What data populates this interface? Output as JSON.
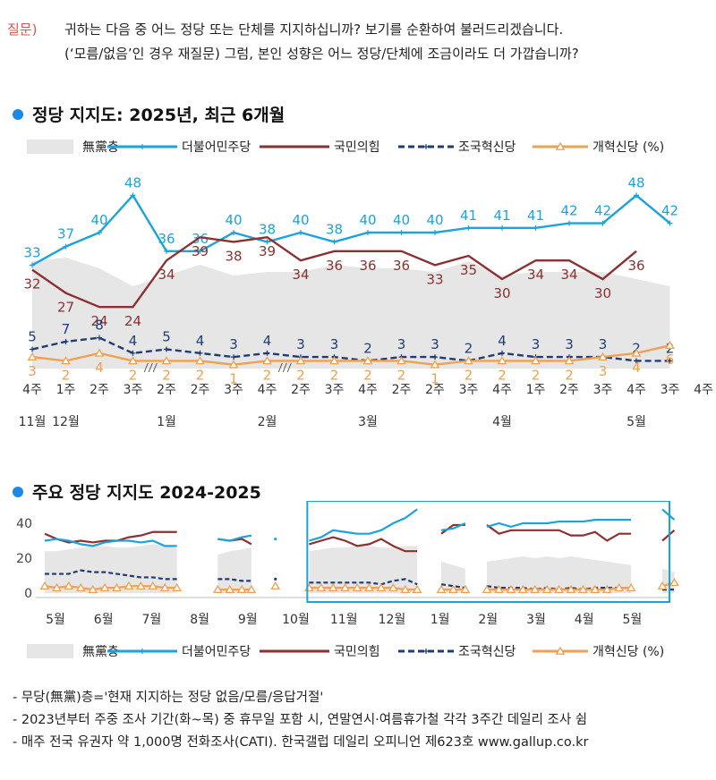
{
  "question": {
    "label": "질문)",
    "line1": "귀하는 다음 중 어느 정당 또는 단체를 지지하십니까? 보기를 순환하여 불러드리겠습니다.",
    "line2": "(‘모름/없음’인 경우 재질문) 그럼, 본인 성향은 어느 정당/단체에 조금이라도 더 가깝습니까?"
  },
  "section1_title": "정당 지지도: 2025년, 최근 6개월",
  "section2_title": "주요 정당 지지도 2024-2025",
  "legend": {
    "noparty": "無黨층",
    "dem": "더불어민주당",
    "ppp": "국민의힘",
    "rebuild": "조국혁신당",
    "reform": "개혁신당 (%)"
  },
  "colors": {
    "dem": "#1aa3dc",
    "ppp": "#8b3131",
    "rebuild": "#1f3d73",
    "reform": "#f0a050",
    "noparty": "#e6e6e6",
    "highlight": "#1aa3dc"
  },
  "chart_data": [
    {
      "type": "line",
      "title": "정당 지지도: 2025년, 최근 6개월",
      "x": [
        "4주",
        "1주",
        "2주",
        "3주",
        "2주",
        "2주",
        "3주",
        "4주",
        "2주",
        "3주",
        "4주",
        "2주",
        "2주",
        "3주",
        "4주",
        "1주",
        "2주",
        "3주",
        "4주",
        "3주",
        "4주"
      ],
      "month_labels": [
        {
          "label": "11월",
          "at": 0
        },
        {
          "label": "12월",
          "at": 1
        },
        {
          "label": "1월",
          "at": 4
        },
        {
          "label": "2월",
          "at": 7
        },
        {
          "label": "3월",
          "at": 10
        },
        {
          "label": "4월",
          "at": 14
        },
        {
          "label": "5월",
          "at": 18
        }
      ],
      "break_marks_after": [
        3,
        7
      ],
      "series": [
        {
          "name": "더불어민주당",
          "key": "dem",
          "values": [
            33,
            37,
            40,
            48,
            36,
            36,
            40,
            38,
            40,
            38,
            40,
            40,
            40,
            41,
            41,
            41,
            42,
            42,
            48,
            42,
            null
          ],
          "label_pos": "above"
        },
        {
          "name": "국민의힘",
          "key": "ppp",
          "values": [
            32,
            27,
            24,
            24,
            34,
            39,
            38,
            39,
            34,
            36,
            36,
            36,
            33,
            35,
            30,
            34,
            34,
            30,
            36,
            null,
            null
          ],
          "label_pos": "below"
        },
        {
          "name": "조국혁신당",
          "key": "rebuild",
          "values": [
            5,
            7,
            8,
            4,
            5,
            4,
            3,
            4,
            3,
            3,
            2,
            3,
            3,
            2,
            4,
            3,
            3,
            3,
            2,
            2,
            null
          ],
          "label_pos": "above"
        },
        {
          "name": "개혁신당",
          "key": "reform",
          "values": [
            3,
            2,
            4,
            2,
            2,
            2,
            1,
            2,
            2,
            2,
            2,
            2,
            1,
            2,
            2,
            2,
            2,
            3,
            4,
            6,
            null
          ],
          "label_pos": "below"
        }
      ],
      "noparty": [
        30,
        31,
        28,
        23,
        26,
        29,
        26,
        27,
        27,
        29,
        28,
        28,
        27,
        30,
        26,
        27,
        27,
        27,
        25,
        23,
        null
      ],
      "ylim": [
        0,
        55
      ]
    },
    {
      "type": "line",
      "title": "주요 정당 지지도 2024-2025",
      "yticks": [
        0,
        20,
        40
      ],
      "ylim": [
        0,
        50
      ],
      "months": [
        "5월",
        "6월",
        "7월",
        "8월",
        "9월",
        "10월",
        "11월",
        "12월",
        "1월",
        "2월",
        "3월",
        "4월",
        "5월"
      ],
      "segments": [
        {
          "x": [
            0.0,
            0.25,
            0.5,
            0.75,
            1.0,
            1.25,
            1.5,
            1.75,
            2.0,
            2.25,
            2.5,
            2.75
          ],
          "dem": [
            30,
            31,
            30,
            28,
            27,
            29,
            30,
            30,
            29,
            30,
            27,
            27
          ],
          "ppp": [
            34,
            31,
            29,
            30,
            29,
            30,
            30,
            32,
            33,
            35,
            35,
            35
          ],
          "rebuild": [
            11,
            11,
            11,
            13,
            12,
            12,
            11,
            10,
            9,
            9,
            8,
            8
          ],
          "reform": [
            4,
            3,
            4,
            3,
            2,
            3,
            3,
            4,
            4,
            4,
            3,
            3
          ],
          "noparty": [
            24,
            24,
            25,
            26,
            27,
            27,
            26,
            26,
            27,
            28,
            27,
            26
          ]
        },
        {
          "x": [
            3.6,
            3.85,
            4.1,
            4.3
          ],
          "dem": [
            31,
            30,
            32,
            33
          ],
          "ppp": [
            31,
            30,
            31,
            28
          ],
          "rebuild": [
            8,
            8,
            7,
            7
          ],
          "reform": [
            2,
            2,
            2,
            2
          ],
          "noparty": [
            22,
            24,
            25,
            26
          ]
        },
        {
          "x": [
            4.8
          ],
          "dem": [
            31
          ],
          "rebuild": [
            8
          ],
          "reform": [
            4
          ]
        },
        {
          "x": [
            5.5,
            5.75,
            6.0,
            6.25,
            6.5,
            6.75,
            7.0,
            7.25,
            7.5,
            7.75
          ],
          "dem": [
            30,
            32,
            36,
            35,
            34,
            34,
            36,
            40,
            43,
            48
          ],
          "ppp": [
            28,
            30,
            32,
            30,
            27,
            28,
            31,
            27,
            24,
            24
          ],
          "rebuild": [
            6,
            6,
            6,
            6,
            6,
            6,
            5,
            7,
            8,
            5
          ],
          "reform": [
            3,
            3,
            3,
            3,
            3,
            3,
            3,
            3,
            2,
            2
          ],
          "noparty": [
            24,
            25,
            26,
            26,
            27,
            27,
            26,
            26,
            27,
            27
          ]
        },
        {
          "x": [
            8.25,
            8.5,
            8.75
          ],
          "dem": [
            36,
            37,
            40
          ],
          "ppp": [
            34,
            39,
            39
          ],
          "rebuild": [
            5,
            4,
            3
          ],
          "reform": [
            2,
            2,
            2
          ],
          "noparty": [
            18,
            16,
            14
          ]
        },
        {
          "x": [
            9.2,
            9.45,
            9.7,
            9.95,
            10.2,
            10.45,
            10.7,
            10.95,
            11.2,
            11.45,
            11.7,
            11.95,
            12.2
          ],
          "dem": [
            38,
            40,
            38,
            40,
            40,
            40,
            41,
            41,
            41,
            42,
            42,
            42,
            42
          ],
          "ppp": [
            39,
            34,
            36,
            36,
            36,
            36,
            36,
            33,
            33,
            35,
            30,
            34,
            34
          ],
          "rebuild": [
            4,
            3,
            3,
            3,
            2,
            3,
            2,
            3,
            2,
            3,
            3,
            3,
            3
          ],
          "reform": [
            2,
            2,
            2,
            2,
            2,
            2,
            2,
            2,
            2,
            2,
            2,
            3,
            3
          ],
          "noparty": [
            18,
            19,
            20,
            21,
            20,
            21,
            20,
            21,
            20,
            19,
            18,
            17,
            16
          ]
        },
        {
          "x": [
            12.85,
            13.1
          ],
          "dem": [
            48,
            42
          ],
          "ppp": [
            30,
            36
          ],
          "rebuild": [
            2,
            2
          ],
          "reform": [
            4,
            6
          ],
          "noparty": [
            14,
            12
          ]
        }
      ],
      "highlight_from": 5.5
    }
  ],
  "notes": [
    "- 무당(無黨)층='현재 지지하는 정당 없음/모름/응답거절'",
    "- 2023년부터 주중 조사 기간(화~목) 중 휴무일 포함 시, 연말연시·여름휴가철 각각 3주간 데일리 조사 쉼",
    "- 매주 전국 유권자 약 1,000명 전화조사(CATI). 한국갤럽 데일리 오피니언 제623호 www.gallup.co.kr"
  ]
}
